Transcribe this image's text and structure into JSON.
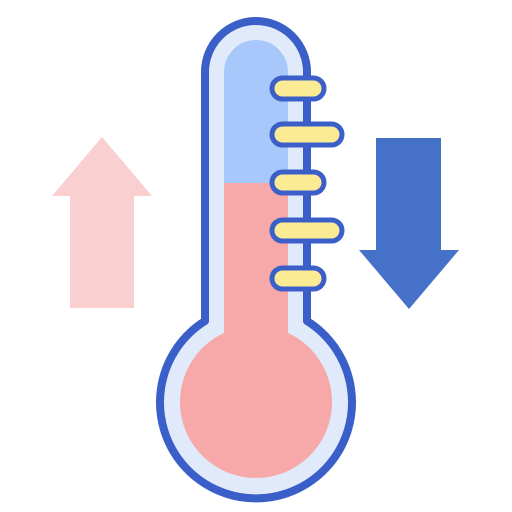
{
  "icon": {
    "name": "temperature-change-icon",
    "thermometer_level": 0.58,
    "colors": {
      "outline": "#3A5FC8",
      "glass": "#E1EAFA",
      "cold_fill": "#A8C8FB",
      "hot_fill": "#F7A8A8",
      "tick": "#FCEB95",
      "up_arrow": "#F9CFCF",
      "down_arrow": "#4671C8"
    }
  }
}
